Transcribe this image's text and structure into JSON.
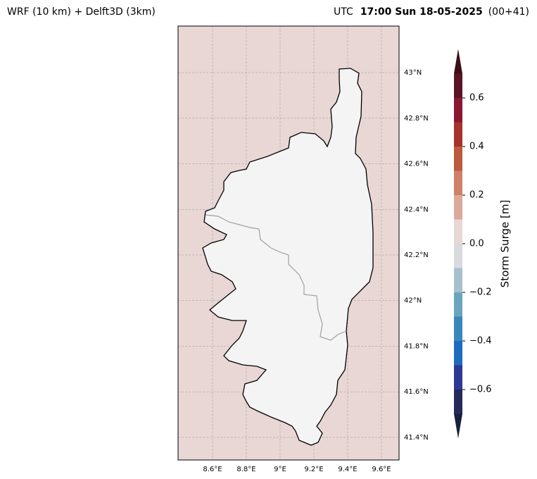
{
  "chart_data": {
    "type": "map",
    "title": "WRF (10 km) + Delft3D (3km)",
    "time_prefix": "UTC",
    "time": "17:00 Sun 18-05-2025",
    "time_color": "#cd5c5c",
    "lead": "(00+41)",
    "xlim": [
      8.396,
      9.704
    ],
    "ylim": [
      41.301,
      43.204
    ],
    "xticks": [
      {
        "value": 8.6,
        "label": "8.6°E"
      },
      {
        "value": 8.8,
        "label": "8.8°E"
      },
      {
        "value": 9.0,
        "label": "9°E"
      },
      {
        "value": 9.2,
        "label": "9.2°E"
      },
      {
        "value": 9.4,
        "label": "9.4°E"
      },
      {
        "value": 9.6,
        "label": "9.6°E"
      }
    ],
    "yticks": [
      {
        "value": 41.4,
        "label": "41.4°N"
      },
      {
        "value": 41.6,
        "label": "41.6°N"
      },
      {
        "value": 41.8,
        "label": "41.8°N"
      },
      {
        "value": 42.0,
        "label": "42°N"
      },
      {
        "value": 42.2,
        "label": "42.2°N"
      },
      {
        "value": 42.4,
        "label": "42.4°N"
      },
      {
        "value": 42.6,
        "label": "42.6°N"
      },
      {
        "value": 42.8,
        "label": "42.8°N"
      },
      {
        "value": 43.0,
        "label": "43°N"
      }
    ],
    "grid": true,
    "sea_color": "#e8d7d4",
    "land_color": "#f4f4f4",
    "colorbar": {
      "label": "Storm Surge [m]",
      "levels": [
        -0.7,
        -0.6,
        -0.5,
        -0.4,
        -0.3,
        -0.2,
        -0.1,
        0.0,
        0.1,
        0.2,
        0.3,
        0.4,
        0.5,
        0.6,
        0.7
      ],
      "colors": [
        "#252a5a",
        "#2d3a94",
        "#1c6cc0",
        "#3a88bb",
        "#6aa5bd",
        "#a8c0cc",
        "#d9dadd",
        "#e8d7d4",
        "#dca89a",
        "#cf8068",
        "#bb5a3c",
        "#a8312a",
        "#891830",
        "#5b1426"
      ],
      "extend_colors": [
        "#1a1f3a",
        "#3b0e18"
      ],
      "ticks": [
        {
          "value": -0.6,
          "label": "−0.6"
        },
        {
          "value": -0.4,
          "label": "−0.4"
        },
        {
          "value": -0.2,
          "label": "−0.2"
        },
        {
          "value": 0.0,
          "label": "0.0"
        },
        0.2,
        0.4,
        0.6
      ]
    }
  }
}
